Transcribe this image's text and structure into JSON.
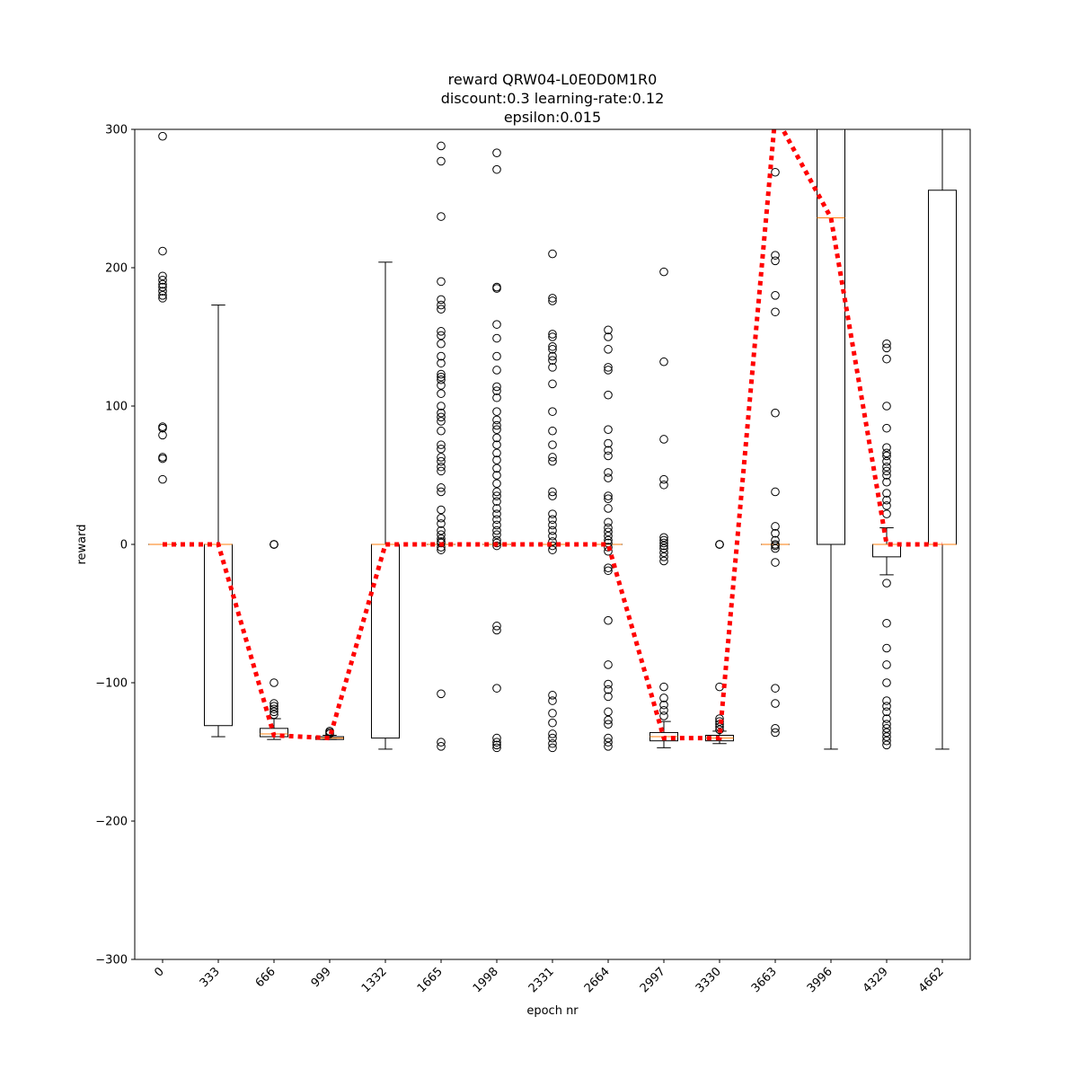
{
  "chart_data": {
    "type": "boxplot",
    "title_lines": [
      "reward QRW04-L0E0D0M1R0",
      "discount:0.3 learning-rate:0.12",
      "epsilon:0.015"
    ],
    "xlabel": "epoch nr",
    "ylabel": "reward",
    "ylim": [
      -300,
      300
    ],
    "yticks": [
      -300,
      -200,
      -100,
      0,
      100,
      200,
      300
    ],
    "ytick_labels": [
      "−300",
      "−200",
      "−100",
      "0",
      "100",
      "200",
      "300"
    ],
    "categories": [
      "0",
      "333",
      "666",
      "999",
      "1332",
      "1665",
      "1998",
      "2331",
      "2664",
      "2997",
      "3330",
      "3663",
      "3996",
      "4329",
      "4662"
    ],
    "boxes": [
      {
        "q1": 0,
        "median": 0,
        "q3": 0,
        "whislo": 0,
        "whishi": 0,
        "fliers": [
          295,
          212,
          194,
          191,
          188,
          186,
          183,
          180,
          178,
          85,
          84,
          79,
          63,
          62,
          47
        ]
      },
      {
        "q1": -131,
        "median": 0,
        "q3": 0,
        "whislo": -139,
        "whishi": 173,
        "fliers": []
      },
      {
        "q1": -139,
        "median": -137,
        "q3": -133,
        "whislo": -141,
        "whishi": -126,
        "fliers": [
          0,
          0,
          0,
          -100,
          -115,
          -117,
          -119,
          -121,
          -123
        ]
      },
      {
        "q1": -141,
        "median": -140,
        "q3": -139,
        "whislo": -141,
        "whishi": -138,
        "fliers": [
          -135,
          -136,
          -137
        ]
      },
      {
        "q1": -140,
        "median": 0,
        "q3": 0,
        "whislo": -148,
        "whishi": 204,
        "fliers": []
      },
      {
        "q1": 0,
        "median": 0,
        "q3": 0,
        "whislo": 0,
        "whishi": 0,
        "fliers": [
          288,
          277,
          237,
          190,
          177,
          173,
          170,
          154,
          151,
          145,
          136,
          131,
          123,
          121,
          119,
          115,
          109,
          100,
          95,
          92,
          89,
          82,
          72,
          69,
          63,
          60,
          56,
          53,
          41,
          38,
          25,
          19,
          15,
          10,
          7,
          4,
          2,
          1,
          -2,
          -4,
          -108,
          -143,
          -146
        ]
      },
      {
        "q1": 0,
        "median": 0,
        "q3": 0,
        "whislo": 0,
        "whishi": 0,
        "fliers": [
          283,
          271,
          186,
          185,
          159,
          149,
          136,
          126,
          114,
          111,
          106,
          96,
          90,
          86,
          83,
          77,
          72,
          66,
          61,
          55,
          50,
          44,
          38,
          35,
          31,
          26,
          22,
          18,
          14,
          10,
          7,
          3,
          1,
          -1,
          -59,
          -62,
          -104,
          -140,
          -143,
          -145,
          -147
        ]
      },
      {
        "q1": 0,
        "median": 0,
        "q3": 0,
        "whislo": 0,
        "whishi": 0,
        "fliers": [
          210,
          178,
          176,
          152,
          150,
          143,
          141,
          136,
          133,
          128,
          116,
          96,
          82,
          72,
          63,
          60,
          38,
          35,
          22,
          18,
          14,
          10,
          6,
          2,
          -1,
          -4,
          -109,
          -113,
          -122,
          -129,
          -137,
          -140,
          -144,
          -147
        ]
      },
      {
        "q1": 0,
        "median": 0,
        "q3": 0,
        "whislo": 0,
        "whishi": 0,
        "fliers": [
          155,
          150,
          141,
          128,
          126,
          108,
          83,
          73,
          68,
          64,
          52,
          48,
          35,
          33,
          26,
          16,
          12,
          9,
          6,
          3,
          1,
          -2,
          -5,
          -17,
          -19,
          -55,
          -87,
          -101,
          -105,
          -110,
          -121,
          -127,
          -130,
          -140,
          -143,
          -146
        ]
      },
      {
        "q1": -142,
        "median": -139,
        "q3": -136,
        "whislo": -147,
        "whishi": -128,
        "fliers": [
          197,
          132,
          76,
          47,
          43,
          5,
          3,
          1,
          -1,
          -3,
          -6,
          -9,
          -12,
          -103,
          -111,
          -116,
          -120,
          -124
        ]
      },
      {
        "q1": -142,
        "median": -140,
        "q3": -138,
        "whislo": -144,
        "whishi": -135,
        "fliers": [
          0,
          0,
          0,
          -103,
          -126,
          -128,
          -130,
          -132,
          -134
        ]
      },
      {
        "q1": 0,
        "median": 0,
        "q3": 0,
        "whislo": 0,
        "whishi": 0,
        "fliers": [
          269,
          209,
          205,
          180,
          168,
          95,
          38,
          13,
          8,
          3,
          0,
          -1,
          -3,
          -13,
          -104,
          -115,
          -133,
          -136
        ]
      },
      {
        "q1": 0,
        "median": 236,
        "q3": 300,
        "whislo": -148,
        "whishi": 300,
        "fliers": []
      },
      {
        "q1": -9,
        "median": 0,
        "q3": 0,
        "whislo": -22,
        "whishi": 12,
        "fliers": [
          145,
          142,
          134,
          100,
          84,
          70,
          66,
          64,
          60,
          56,
          53,
          50,
          45,
          37,
          32,
          28,
          22,
          -28,
          -57,
          -75,
          -87,
          -100,
          -113,
          -117,
          -121,
          -126,
          -130,
          -133,
          -136,
          -139,
          -142,
          -145
        ]
      },
      {
        "q1": 0,
        "median": 0,
        "q3": 256,
        "whislo": -148,
        "whishi": 300,
        "fliers": []
      }
    ],
    "mean_line": {
      "values": [
        0,
        0,
        -138,
        -140,
        0,
        0,
        0,
        0,
        0,
        -140,
        -140,
        310,
        236,
        0,
        0
      ],
      "color": "#ff0000",
      "style": "dotted"
    },
    "colors": {
      "box": "#000000",
      "median": "#ff7f0e",
      "mean_line": "#ff0000"
    },
    "grid": false,
    "legend": "none"
  }
}
